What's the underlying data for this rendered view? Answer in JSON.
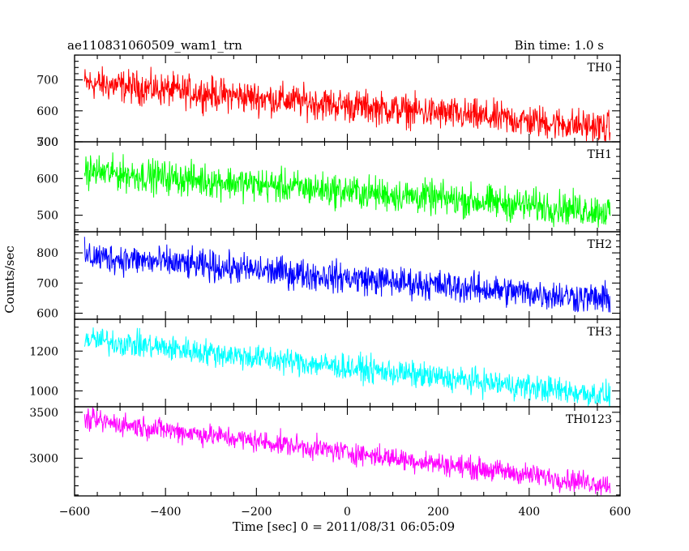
{
  "header": {
    "title": "ae110831060509_wam1_trn",
    "bin_time": "Bin time: 1.0 s"
  },
  "chart_data": {
    "type": "line",
    "title": "ae110831060509_wam1_trn",
    "xlabel": "Time [sec] 0 = 2011/08/31 06:05:09",
    "ylabel": "Counts/sec",
    "xlim": [
      -600,
      600
    ],
    "x_ticks": [
      -600,
      -400,
      -200,
      0,
      200,
      400,
      600
    ],
    "x_range": [
      -578,
      578
    ],
    "grid": false,
    "panels": [
      {
        "name": "TH0",
        "color": "#ff0000",
        "ylim": [
          500,
          780
        ],
        "ticks": [
          500,
          600,
          700
        ],
        "trend": [
          690,
          545
        ],
        "noise": 42
      },
      {
        "name": "TH1",
        "color": "#00ff00",
        "ylim": [
          455,
          700
        ],
        "ticks": [
          500,
          600,
          700
        ],
        "trend": [
          620,
          510
        ],
        "noise": 36
      },
      {
        "name": "TH2",
        "color": "#0000ff",
        "ylim": [
          580,
          870
        ],
        "ticks": [
          600,
          700,
          800
        ],
        "trend": [
          790,
          645
        ],
        "noise": 40
      },
      {
        "name": "TH3",
        "color": "#00ffff",
        "ylim": [
          920,
          1360
        ],
        "ticks": [
          1000,
          1200
        ],
        "trend": [
          1260,
          975
        ],
        "noise": 52
      },
      {
        "name": "TH0123",
        "color": "#ff00ff",
        "ylim": [
          2590,
          3560
        ],
        "ticks": [
          3000,
          3500
        ],
        "trend": [
          3420,
          2710
        ],
        "noise": 95
      }
    ]
  }
}
